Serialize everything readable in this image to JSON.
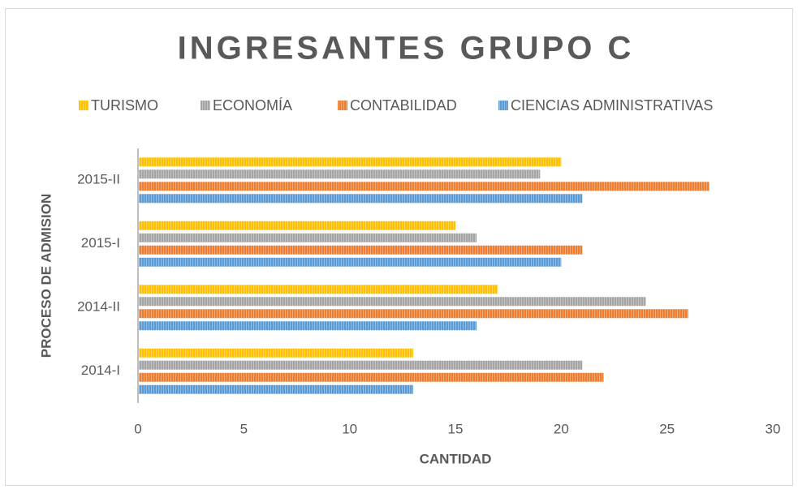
{
  "chart_data": {
    "type": "hbar",
    "title": "INGRESANTES GRUPO C",
    "x_label": "CANTIDAD",
    "y_label": "PROCESO DE ADMISION",
    "categories": [
      "2014-I",
      "2014-II",
      "2015-I",
      "2015-II"
    ],
    "series": [
      {
        "name": "TURISMO",
        "color": "#ffc000",
        "values": [
          13,
          17,
          15,
          20
        ]
      },
      {
        "name": "ECONOMÍA",
        "color": "#a5a5a5",
        "values": [
          21,
          24,
          16,
          19
        ]
      },
      {
        "name": "CONTABILIDAD",
        "color": "#ed7d31",
        "values": [
          22,
          26,
          21,
          27
        ]
      },
      {
        "name": "CIENCIAS ADMINISTRATIVAS",
        "color": "#5b9bd5",
        "values": [
          13,
          16,
          20,
          21
        ]
      }
    ],
    "xlim": [
      0,
      30
    ],
    "xticks": [
      0,
      5,
      10,
      15,
      20,
      25,
      30
    ],
    "grid": false,
    "legend": "top"
  }
}
